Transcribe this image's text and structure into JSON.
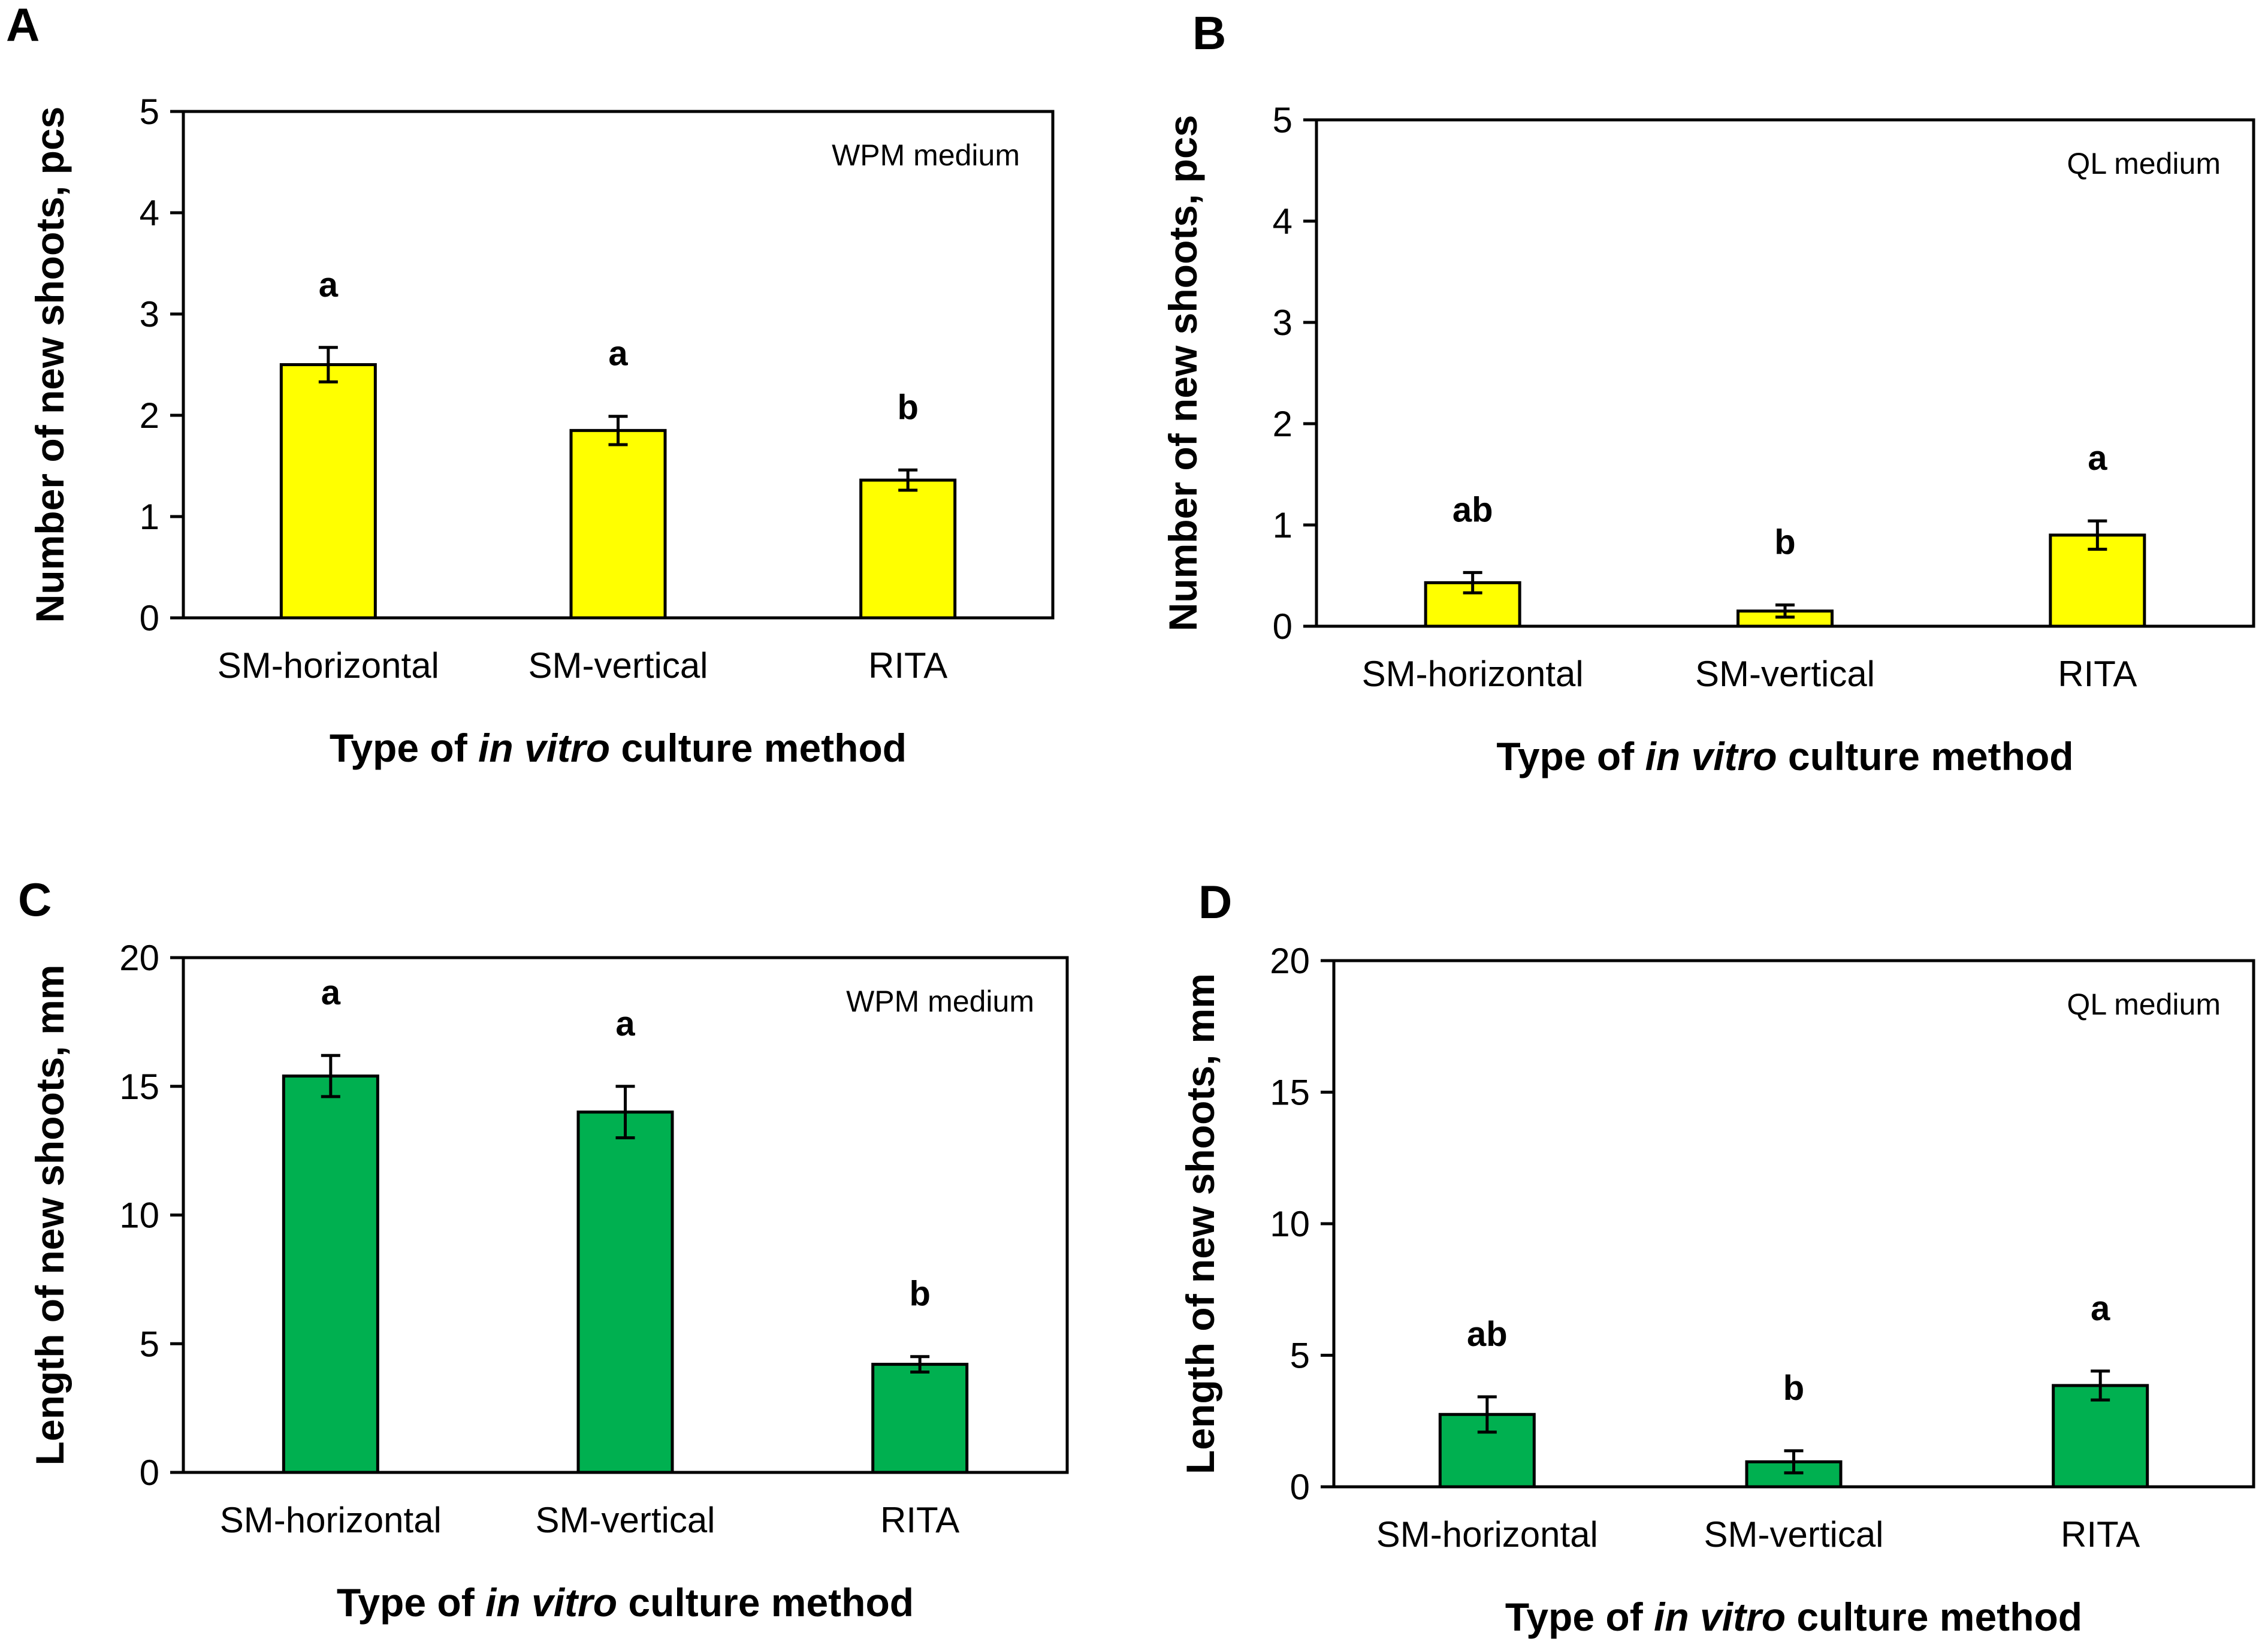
{
  "chart_data": [
    {
      "panel": "A",
      "type": "bar",
      "title": "WPM medium",
      "categories": [
        "SM-horizontal",
        "SM-vertical",
        "RITA"
      ],
      "values": [
        2.5,
        1.85,
        1.36
      ],
      "errors": [
        0.17,
        0.14,
        0.1
      ],
      "significance": [
        "a",
        "a",
        "b"
      ],
      "xlabel_parts": [
        "Type of ",
        "in vitro",
        " culture method"
      ],
      "ylabel": "Number of new shoots, pcs",
      "ylim": [
        0,
        5
      ],
      "yticks": [
        0,
        1,
        2,
        3,
        4,
        5
      ],
      "bar_color": "#FFFF00",
      "grid": false
    },
    {
      "panel": "B",
      "type": "bar",
      "title": "QL medium",
      "categories": [
        "SM-horizontal",
        "SM-vertical",
        "RITA"
      ],
      "values": [
        0.43,
        0.15,
        0.9
      ],
      "errors": [
        0.1,
        0.06,
        0.14
      ],
      "significance": [
        "ab",
        "b",
        "a"
      ],
      "xlabel_parts": [
        "Type of ",
        "in vitro",
        " culture method"
      ],
      "ylabel": "Number of new shoots, pcs",
      "ylim": [
        0,
        5
      ],
      "yticks": [
        0,
        1,
        2,
        3,
        4,
        5
      ],
      "bar_color": "#FFFF00",
      "grid": false
    },
    {
      "panel": "C",
      "type": "bar",
      "title": "WPM medium",
      "categories": [
        "SM-horizontal",
        "SM-vertical",
        "RITA"
      ],
      "values": [
        15.4,
        14.0,
        4.2
      ],
      "errors": [
        0.8,
        1.0,
        0.3
      ],
      "significance": [
        "a",
        "a",
        "b"
      ],
      "xlabel_parts": [
        "Type of ",
        "in vitro",
        " culture method"
      ],
      "ylabel": "Length of new shoots, mm",
      "ylim": [
        0,
        20
      ],
      "yticks": [
        0,
        5,
        10,
        15,
        20
      ],
      "bar_color": "#00B050",
      "grid": false
    },
    {
      "panel": "D",
      "type": "bar",
      "title": "QL medium",
      "categories": [
        "SM-horizontal",
        "SM-vertical",
        "RITA"
      ],
      "values": [
        2.75,
        0.95,
        3.85
      ],
      "errors": [
        0.67,
        0.42,
        0.55
      ],
      "significance": [
        "ab",
        "b",
        "a"
      ],
      "xlabel_parts": [
        "Type of ",
        "in vitro",
        " culture method"
      ],
      "ylabel": "Length of new shoots, mm",
      "ylim": [
        0,
        20
      ],
      "yticks": [
        0,
        5,
        10,
        15,
        20
      ],
      "bar_color": "#00B050",
      "grid": false
    }
  ]
}
